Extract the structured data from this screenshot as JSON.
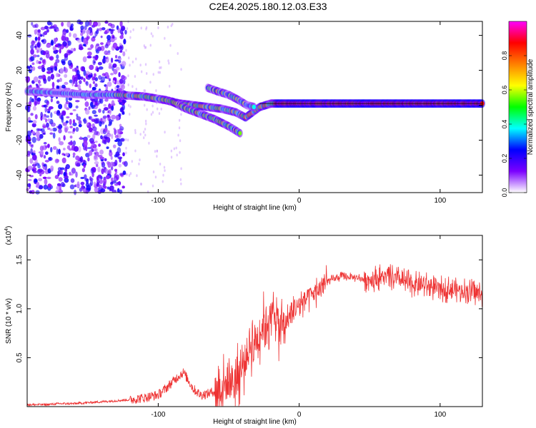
{
  "title": "C2E4.2025.180.12.03.E33",
  "chart_data": [
    {
      "type": "heatmap",
      "name": "spectrogram",
      "xlabel": "Height of straight line (km)",
      "ylabel": "Frequency (Hz)",
      "xlim": [
        -193,
        130
      ],
      "ylim": [
        -50,
        48
      ],
      "xticks": [
        -100,
        0,
        100
      ],
      "xtick_labels": [
        "-100",
        "0",
        "100"
      ],
      "yticks": [
        -40,
        -20,
        0,
        20,
        40
      ],
      "ytick_labels": [
        "-40",
        "-20",
        "0",
        "20",
        "40"
      ],
      "grid": false,
      "colorbar": {
        "label": "Normalized spectral amplitude",
        "range": [
          0,
          1
        ],
        "ticks": [
          0.0,
          0.2,
          0.4,
          0.6,
          0.8
        ],
        "tick_labels": [
          "0.0",
          "0.2",
          "0.4",
          "0.6",
          "0.8"
        ],
        "colormap": [
          "#ffffff",
          "#7b00ff",
          "#0000ff",
          "#00ffff",
          "#00ff00",
          "#ffff00",
          "#ff8000",
          "#ff0000",
          "#ff00ff"
        ]
      },
      "ridges": [
        {
          "x": [
            -193,
            -170,
            -150,
            -130,
            -110,
            -95,
            -85,
            -75,
            -65,
            -55,
            -45,
            -38,
            -33,
            -28,
            -20,
            0,
            50,
            100,
            130
          ],
          "y": [
            8,
            7,
            6,
            6,
            5,
            3,
            1,
            0,
            -1,
            -2,
            -4,
            -7,
            -4,
            -1,
            1,
            1,
            1,
            1,
            1
          ]
        },
        {
          "x": [
            -90,
            -80,
            -70,
            -60,
            -50,
            -42
          ],
          "y": [
            2,
            -2,
            -5,
            -8,
            -12,
            -16
          ]
        },
        {
          "x": [
            -65,
            -58,
            -50,
            -43,
            -37,
            -32
          ],
          "y": [
            10,
            8,
            6,
            3,
            0,
            -1
          ]
        }
      ]
    },
    {
      "type": "line",
      "name": "snr",
      "xlabel": "Height of straight line (km)",
      "ylabel": "SNR (10 * v/v)",
      "y_multiplier": "(x10^4)",
      "y_multiplier_base": "(x10",
      "y_multiplier_exp": "4",
      "y_multiplier_close": ")",
      "xlim": [
        -193,
        130
      ],
      "ylim": [
        0,
        1.75
      ],
      "xticks": [
        -100,
        0,
        100
      ],
      "xtick_labels": [
        "-100",
        "0",
        "100"
      ],
      "yticks": [
        0.5,
        1.0,
        1.5
      ],
      "ytick_labels": [
        "0.5",
        "1.0",
        "1.5"
      ],
      "grid": false,
      "color": "#ee3333",
      "series": [
        {
          "x": [
            -193,
            -180,
            -170,
            -160,
            -150,
            -140,
            -130,
            -120,
            -110,
            -100,
            -95,
            -90,
            -85,
            -82,
            -80,
            -75,
            -70,
            -65,
            -60,
            -55,
            -50,
            -45,
            -40,
            -35,
            -30,
            -25,
            -20,
            -17,
            -15,
            -10,
            -5,
            0,
            10,
            20,
            30,
            40,
            50,
            60,
            70,
            80,
            90,
            100,
            110,
            120,
            130
          ],
          "y": [
            0.02,
            0.02,
            0.03,
            0.03,
            0.04,
            0.05,
            0.06,
            0.07,
            0.09,
            0.12,
            0.18,
            0.25,
            0.32,
            0.35,
            0.3,
            0.18,
            0.12,
            0.13,
            0.16,
            0.2,
            0.25,
            0.28,
            0.4,
            0.62,
            0.7,
            0.85,
            0.9,
            1.0,
            0.8,
            0.85,
            0.95,
            1.05,
            1.15,
            1.28,
            1.33,
            1.32,
            1.3,
            1.33,
            1.3,
            1.25,
            1.24,
            1.2,
            1.2,
            1.18,
            1.15
          ]
        }
      ]
    }
  ]
}
